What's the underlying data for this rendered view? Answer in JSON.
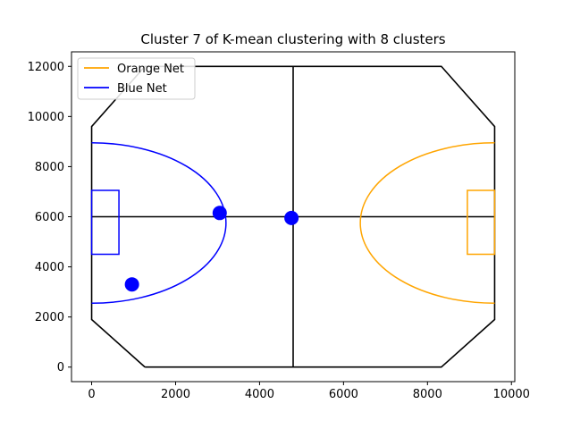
{
  "chart_data": {
    "type": "scatter",
    "title": "Cluster 7 of K-mean clustering with 8 clusters",
    "xlabel": "",
    "ylabel": "",
    "xlim": [
      -480,
      10080
    ],
    "ylim": [
      -580,
      12580
    ],
    "xticks": [
      0,
      2000,
      4000,
      6000,
      8000,
      10000
    ],
    "yticks": [
      0,
      2000,
      4000,
      6000,
      8000,
      10000,
      12000
    ],
    "grid": false,
    "legend": {
      "placement": "top-left",
      "entries": [
        {
          "label": "Orange Net",
          "color": "#ffa500"
        },
        {
          "label": "Blue Net",
          "color": "#0000ff"
        }
      ]
    },
    "field_outline": {
      "color": "#000000",
      "points": [
        [
          1270,
          0
        ],
        [
          8330,
          0
        ],
        [
          9600,
          1900
        ],
        [
          9600,
          9600
        ],
        [
          8330,
          12000
        ],
        [
          1270,
          12000
        ],
        [
          0,
          9600
        ],
        [
          0,
          1900
        ],
        [
          1270,
          0
        ]
      ]
    },
    "center_lines": {
      "color": "#000000",
      "horizontal": [
        [
          0,
          6000
        ],
        [
          9600,
          6000
        ]
      ],
      "vertical": [
        [
          4800,
          0
        ],
        [
          4800,
          12000
        ]
      ]
    },
    "nets": [
      {
        "name": "Blue Net",
        "color": "#0000ff",
        "box": [
          [
            0,
            4500
          ],
          [
            650,
            4500
          ],
          [
            650,
            7050
          ],
          [
            0,
            7050
          ]
        ],
        "arc": {
          "cx": 0,
          "cy": 5750,
          "rx": 3200,
          "ry": 3200,
          "side": "right"
        }
      },
      {
        "name": "Orange Net",
        "color": "#ffa500",
        "box": [
          [
            9600,
            4500
          ],
          [
            8950,
            4500
          ],
          [
            8950,
            7050
          ],
          [
            9600,
            7050
          ]
        ],
        "arc": {
          "cx": 9600,
          "cy": 5750,
          "rx": 3200,
          "ry": 3200,
          "side": "left"
        }
      }
    ],
    "series": [
      {
        "name": "",
        "color": "#0000ff",
        "points": [
          [
            3050,
            6150
          ],
          [
            4760,
            5950
          ],
          [
            960,
            3300
          ]
        ]
      }
    ]
  }
}
